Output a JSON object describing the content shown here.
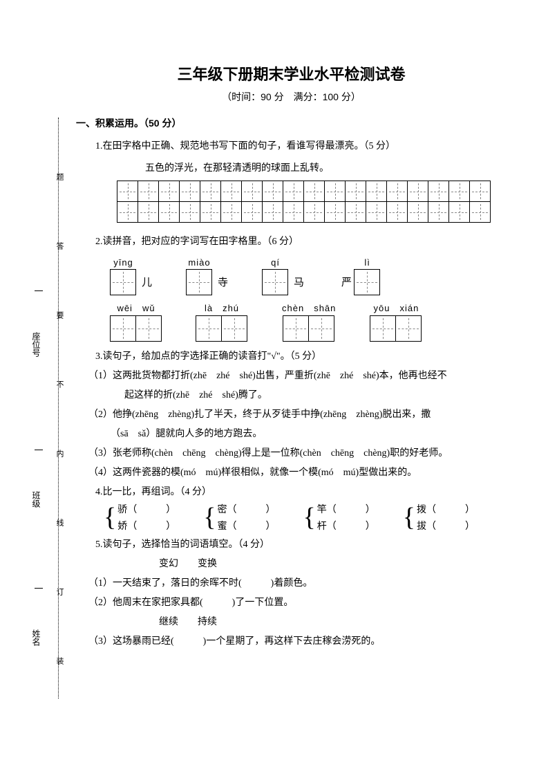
{
  "title": "三年级下册期末学业水平检测试卷",
  "subtitle": "（时间：90 分　满分：100 分）",
  "binding": {
    "fields": {
      "name": "姓名",
      "class": "班级",
      "seat": "座位号"
    },
    "chars": [
      "装",
      "订",
      "线",
      "内",
      "不",
      "要",
      "答",
      "题"
    ]
  },
  "section1": "一、积累运用。（50 分）",
  "q1": {
    "text": "1.在田字格中正确、规范地书写下面的句子，看谁写得最漂亮。（5 分）",
    "given": "五色的浮光，在那轻清透明的球面上乱转。",
    "cols": 18,
    "rows": 2
  },
  "q2": {
    "text": "2.读拼音，把对应的字词写在田字格里。（6 分）",
    "row1": [
      {
        "py": "yīng",
        "cells": 1,
        "after": "儿"
      },
      {
        "py": "miào",
        "cells": 1,
        "after": "寺"
      },
      {
        "py": "qí",
        "cells": 1,
        "after": "马"
      },
      {
        "py": "lì",
        "cells": 1,
        "before": "严"
      }
    ],
    "row2": [
      {
        "py": "wēi　wǔ",
        "cells": 2
      },
      {
        "py": "là　zhú",
        "cells": 2
      },
      {
        "py": "chèn　shān",
        "cells": 2
      },
      {
        "py": "yōu　xián",
        "cells": 2
      }
    ]
  },
  "q3": {
    "text": "3.读句子，给加点的字选择正确的读音打\"√\"。（5 分）",
    "items": [
      "（1）这两批货物都打折(zhē　zhé　shé)出售，严重折(zhē　zhé　shé)本，他再也经不",
      "起这样的折(zhē　zhé　shé)腾了。",
      "（2）他挣(zhēng　zhèng)扎了半天，终于从歹徒手中挣(zhēng　zhèng)脱出来，撒",
      "（sā　sǎ）腿就向人多的地方跑去。",
      "（3）张老师称(chèn　chēng　chèng)得上是一位称(chèn　chēng　chèng)职的好老师。",
      "（4）这两件瓷器的模(mó　mú)样很相似，就像一个模(mó　mú)型做出来的。"
    ]
  },
  "q4": {
    "text": "4.比一比，再组词。（4 分）",
    "pairs": [
      {
        "a": "骄（　　　）",
        "b": "娇（　　　）"
      },
      {
        "a": "密（　　　）",
        "b": "蜜（　　　）"
      },
      {
        "a": "竿（　　　）",
        "b": "杆（　　　）"
      },
      {
        "a": "拨（　　　）",
        "b": "拔（　　　）"
      }
    ]
  },
  "q5": {
    "text": "5.读句子，选择恰当的词语填空。（4 分）",
    "words1": "变幻　　变换",
    "items1": [
      "（1）一天结束了，落日的余晖不时(　　　)着颜色。",
      "（2）他周末在家把家具都(　　　)了一下位置。"
    ],
    "words2": "继续　　持续",
    "items2": [
      "（3）这场暴雨已经(　　　)一个星期了，再这样下去庄稼会涝死的。"
    ]
  }
}
